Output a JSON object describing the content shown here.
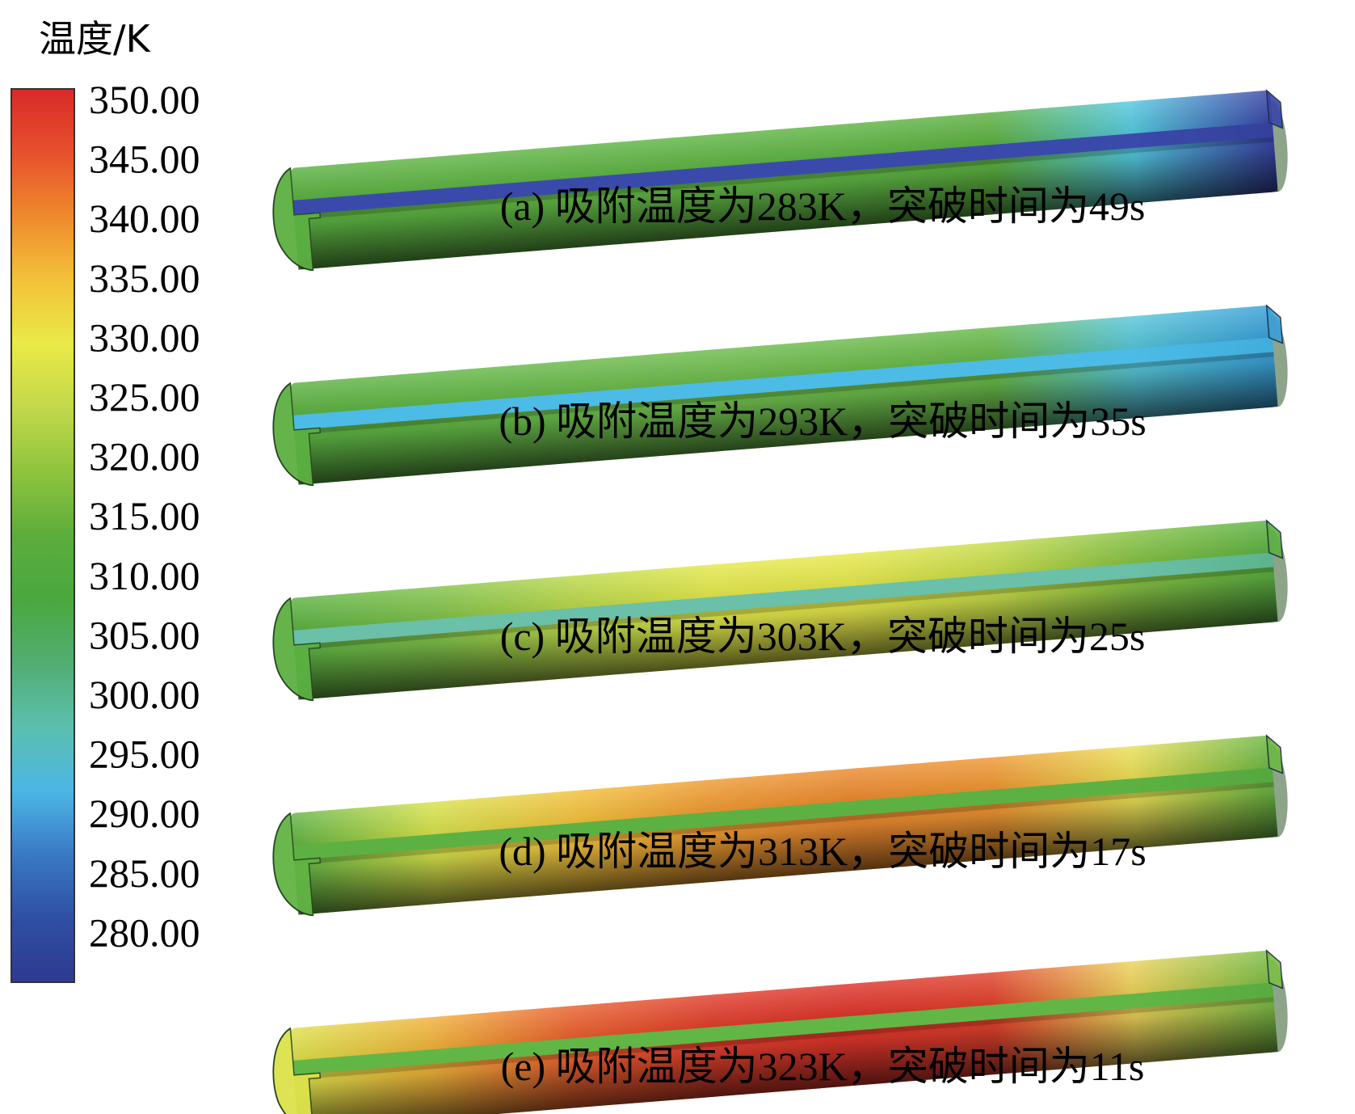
{
  "legend": {
    "title": "温度/K",
    "ticks": [
      "350.00",
      "345.00",
      "340.00",
      "335.00",
      "330.00",
      "325.00",
      "320.00",
      "315.00",
      "310.00",
      "305.00",
      "300.00",
      "295.00",
      "290.00",
      "285.00",
      "280.00"
    ],
    "colormap": [
      "#d92a2a",
      "#e7502c",
      "#ee8a2c",
      "#f3c23a",
      "#e9ea47",
      "#c2d84a",
      "#8ec43e",
      "#5cad3c",
      "#4aa83f",
      "#52ad72",
      "#5bbfae",
      "#4cb6e5",
      "#3a79c4",
      "#2f4fa4",
      "#2e3a8f"
    ]
  },
  "panels": [
    {
      "caption": "(a) 吸附温度为283K，突破时间为49s",
      "outer": [
        "#5cb142",
        "#5fb444",
        "#5fb444",
        "#5fb444",
        "#5fb444",
        "#5cb040",
        "#54c9e0",
        "#3a45a6"
      ],
      "channel": [
        "#3a4aaa",
        "#3a4aaa",
        "#3a4aaa",
        "#3a4aaa",
        "#3a4aaa",
        "#3a4aaa",
        "#3a4aaa",
        "#35409c"
      ]
    },
    {
      "caption": "(b) 吸附温度为293K，突破时间为35s",
      "outer": [
        "#5cb142",
        "#62b646",
        "#69b94a",
        "#6dbb4b",
        "#6bba4a",
        "#68b849",
        "#57c6d8",
        "#3aa0d8"
      ],
      "channel": [
        "#4cbbe6",
        "#4cbbe6",
        "#4cbbe6",
        "#4cbbe6",
        "#4cbbe6",
        "#4cbbe6",
        "#4cbbe6",
        "#40aedc"
      ]
    },
    {
      "caption": "(c) 吸附温度为303K，突破时间为25s",
      "outer": [
        "#5cb142",
        "#7fc14a",
        "#bad84a",
        "#e3e84b",
        "#e6e84b",
        "#c8dc4a",
        "#86c244",
        "#5cb142"
      ],
      "channel": [
        "#6ac0a8",
        "#6ac0a8",
        "#6ac0a8",
        "#6ac0a8",
        "#6ac0a8",
        "#6ac0a8",
        "#6ac0a8",
        "#5cb48e"
      ]
    },
    {
      "caption": "(d) 吸附温度为313K，突破时间为17s",
      "outer": [
        "#62b444",
        "#d7e24c",
        "#f2c23c",
        "#ef9a32",
        "#ec8a30",
        "#ee9632",
        "#eadf56",
        "#6cb844"
      ],
      "channel": [
        "#5cb142",
        "#5cb142",
        "#5cb142",
        "#5cb142",
        "#5cb142",
        "#5cb142",
        "#5cb142",
        "#54a83e"
      ]
    },
    {
      "caption": "(e) 吸附温度为323K，突破时间为11s",
      "outer": [
        "#dde24b",
        "#f0b23a",
        "#e9602e",
        "#e03e2c",
        "#de352b",
        "#e0412c",
        "#ecd25a",
        "#7cbe46"
      ],
      "channel": [
        "#62b646",
        "#62b646",
        "#62b646",
        "#62b646",
        "#62b646",
        "#62b646",
        "#62b646",
        "#58ac40"
      ]
    }
  ]
}
